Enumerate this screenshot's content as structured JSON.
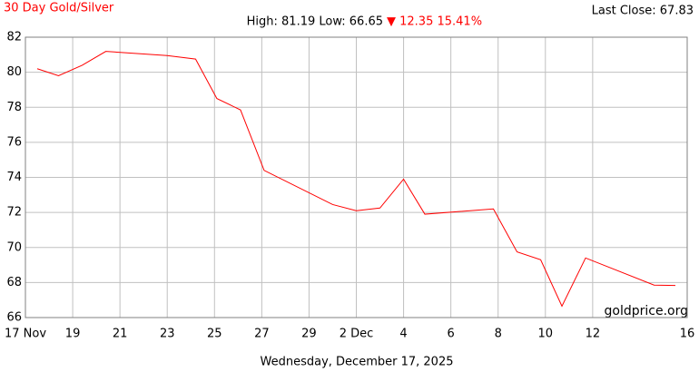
{
  "chart_data": {
    "type": "line",
    "title": "30 Day Gold/Silver",
    "last_close": "Last Close: 67.83",
    "stats": "High: 81.19 Low: 66.65",
    "change": "▼ 12.35 15.41%",
    "xlabel": "Wednesday, December 17, 2025",
    "watermark": "goldprice.org",
    "x": [
      0.5,
      1.4,
      2.4,
      3.4,
      6.0,
      7.2,
      8.1,
      9.1,
      10.1,
      13.0,
      14.0,
      15.0,
      16.0,
      16.9,
      19.8,
      20.8,
      21.8,
      22.7,
      23.7,
      26.6,
      27.5
    ],
    "series": [
      {
        "name": "Gold/Silver",
        "color": "#ff0000",
        "values": [
          80.2,
          79.8,
          80.4,
          81.19,
          80.95,
          80.75,
          78.5,
          77.85,
          74.4,
          72.45,
          72.1,
          72.25,
          73.9,
          71.9,
          72.2,
          69.75,
          69.3,
          66.65,
          69.4,
          67.85,
          67.83
        ]
      }
    ],
    "xlim": [
      0,
      28
    ],
    "xticks": [
      {
        "value": 0,
        "label": "17 Nov"
      },
      {
        "value": 2,
        "label": "19"
      },
      {
        "value": 4,
        "label": "21"
      },
      {
        "value": 6,
        "label": "23"
      },
      {
        "value": 8,
        "label": "25"
      },
      {
        "value": 10,
        "label": "27"
      },
      {
        "value": 12,
        "label": "29"
      },
      {
        "value": 14,
        "label": "2 Dec"
      },
      {
        "value": 16,
        "label": "4"
      },
      {
        "value": 18,
        "label": "6"
      },
      {
        "value": 20,
        "label": "8"
      },
      {
        "value": 22,
        "label": "10"
      },
      {
        "value": 24,
        "label": "12"
      },
      {
        "value": 28,
        "label": "16"
      }
    ],
    "ylim": [
      66,
      82
    ],
    "yticks": [
      66,
      68,
      70,
      72,
      74,
      76,
      78,
      80,
      82
    ],
    "grid": true
  }
}
